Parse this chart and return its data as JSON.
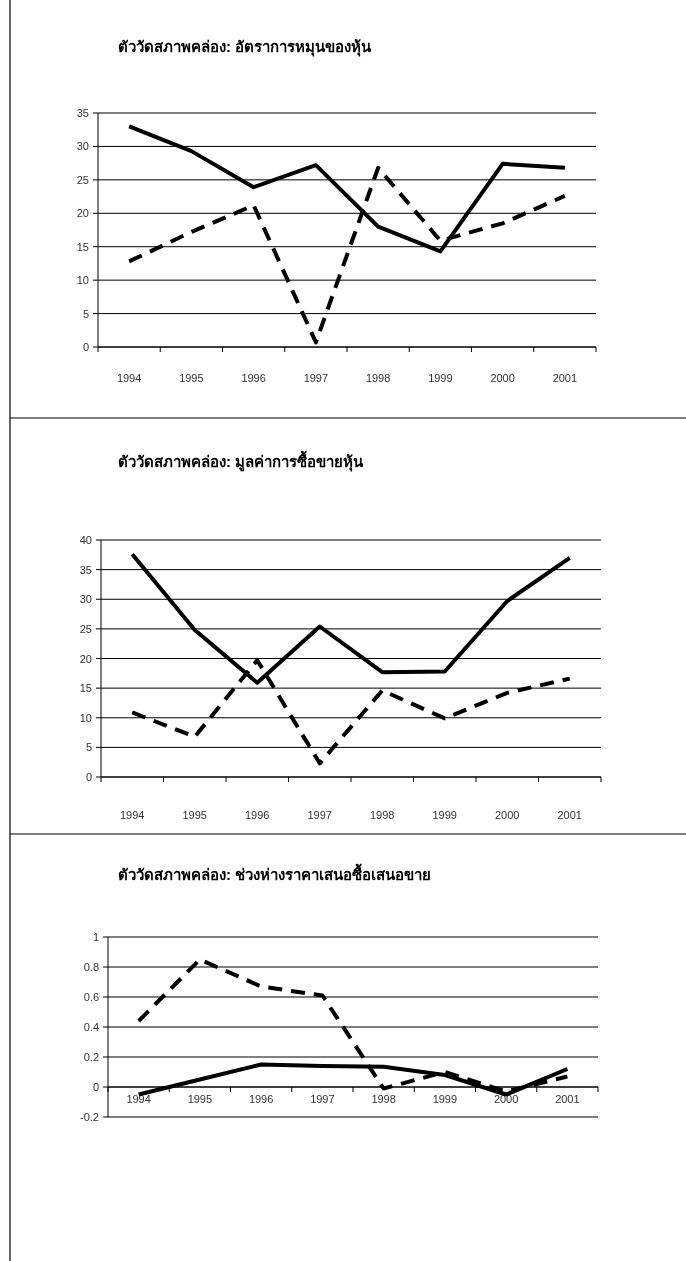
{
  "chart_data": [
    {
      "type": "line",
      "title": "ตัววัดสภาพคล่อง: อัตราการหมุนของหุ้น",
      "categories": [
        "1994",
        "1995",
        "1996",
        "1997",
        "1998",
        "1999",
        "2000",
        "2001"
      ],
      "series": [
        {
          "color": "#000000",
          "line_style": "solid",
          "values": [
            33,
            29.3,
            23.9,
            27.2,
            18,
            14.3,
            27.4,
            26.8
          ]
        },
        {
          "color": "#000000",
          "line_style": "dashed",
          "values": [
            12.8,
            17.2,
            21.2,
            0.7,
            26.8,
            15.9,
            18.5,
            22.6
          ]
        }
      ],
      "ylim": [
        0,
        35
      ],
      "yticks": [
        0,
        5,
        10,
        15,
        20,
        25,
        30,
        35
      ],
      "grid": "y"
    },
    {
      "type": "line",
      "title": "ตัววัดสภาพคล่อง: มูลค่าการซื้อขายหุ้น",
      "categories": [
        "1994",
        "1995",
        "1996",
        "1997",
        "1998",
        "1999",
        "2000",
        "2001"
      ],
      "series": [
        {
          "color": "#000000",
          "line_style": "solid",
          "values": [
            37.6,
            24.8,
            15.9,
            25.4,
            17.7,
            17.8,
            29.7,
            37
          ]
        },
        {
          "color": "#000000",
          "line_style": "dashed",
          "values": [
            10.9,
            6.8,
            19.7,
            2.3,
            14.6,
            9.9,
            14.2,
            16.6
          ]
        }
      ],
      "ylim": [
        0,
        40
      ],
      "yticks": [
        0,
        5,
        10,
        15,
        20,
        25,
        30,
        35,
        40
      ],
      "grid": "y"
    },
    {
      "type": "line",
      "title": "ตัววัดสภาพคล่อง: ช่วงห่างราคาเสนอซื้อเสนอขาย",
      "categories": [
        "1994",
        "1995",
        "1996",
        "1997",
        "1998",
        "1999",
        "2000",
        "2001"
      ],
      "series": [
        {
          "color": "#000000",
          "line_style": "solid",
          "values": [
            -0.05,
            0.05,
            0.15,
            0.14,
            0.135,
            0.08,
            -0.05,
            0.12
          ]
        },
        {
          "color": "#000000",
          "line_style": "dashed",
          "values": [
            0.44,
            0.85,
            0.67,
            0.61,
            -0.01,
            0.1,
            -0.03,
            0.07
          ]
        }
      ],
      "ylim": [
        -0.2,
        1
      ],
      "yticks": [
        -0.2,
        0,
        0.2,
        0.4,
        0.6,
        0.8,
        1
      ],
      "grid": "y"
    }
  ]
}
